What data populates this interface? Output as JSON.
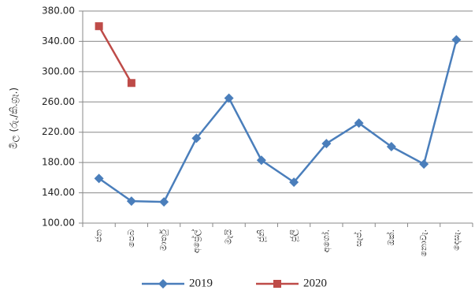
{
  "chart_data": {
    "type": "line",
    "y_label": "මිල (රු./කි.ග්‍රෑ.)",
    "categories": [
      "ජන",
      "පෙබ",
      "මාර්තු",
      "අප්‍රේල්",
      "මැයි",
      "ජූනි",
      "ජූලි",
      "අගෝ.",
      "සැප්.",
      "ඔක්.",
      "නොවැ.",
      "දෙසැ."
    ],
    "series": [
      {
        "name": "2019",
        "color": "#4a7ebb",
        "marker": "diamond",
        "values": [
          159,
          129,
          128,
          212,
          265,
          183,
          154,
          205,
          232,
          201,
          178,
          342
        ]
      },
      {
        "name": "2020",
        "color": "#be4b48",
        "marker": "square",
        "values": [
          360,
          285,
          null,
          null,
          null,
          null,
          null,
          null,
          null,
          null,
          null,
          null
        ]
      }
    ],
    "ylim": [
      100,
      380
    ],
    "yticks": [
      {
        "value": 100,
        "label": "100.00"
      },
      {
        "value": 140,
        "label": "140.00"
      },
      {
        "value": 180,
        "label": "180.00"
      },
      {
        "value": 220,
        "label": "220.00"
      },
      {
        "value": 260,
        "label": "260.00"
      },
      {
        "value": 300,
        "label": "300.00"
      },
      {
        "value": 340,
        "label": "340.00"
      },
      {
        "value": 380,
        "label": "380.00"
      }
    ],
    "grid": true,
    "legend": "bottom"
  }
}
